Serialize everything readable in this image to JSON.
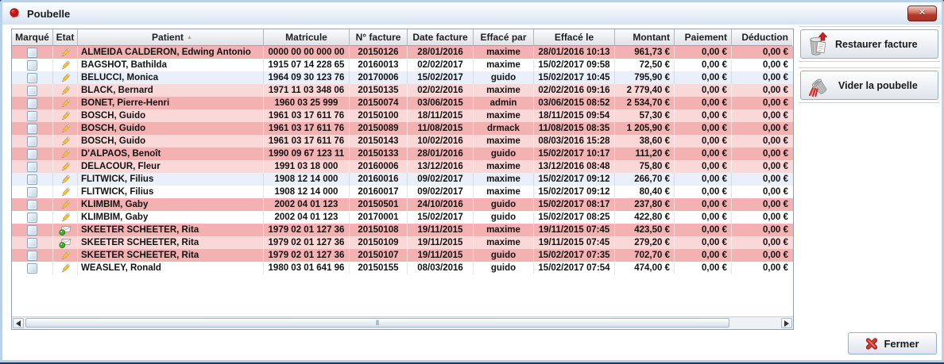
{
  "window": {
    "title": "Poubelle"
  },
  "icons": {
    "close_glyph": "✕"
  },
  "side_panel": {
    "restore_label": "Restaurer facture",
    "empty_label": "Vider la poubelle"
  },
  "footer": {
    "close_label": "Fermer"
  },
  "table": {
    "columns": [
      "Marqué",
      "Etat",
      "Patient",
      "Matricule",
      "N° facture",
      "Date facture",
      "Effacé par",
      "Effacé le",
      "Montant",
      "Paiement",
      "Déduction"
    ],
    "sorted_by": "Patient",
    "sort_direction": "asc",
    "rows": [
      {
        "marked": false,
        "etat": "pencil",
        "patient": "ALMEIDA CALDERON, Edwing Antonio",
        "matricule": "0000 00 00 000 00",
        "n_facture": "20150126",
        "date_facture": "28/01/2016",
        "efface_par": "maxime",
        "efface_le": "28/01/2016 10:13",
        "montant": "961,73 €",
        "paiement": "0,00 €",
        "deduction": "0,00 €",
        "tint": "dark-pink"
      },
      {
        "marked": false,
        "etat": "pencil",
        "patient": "BAGSHOT, Bathilda",
        "matricule": "1915 07 14 228 65",
        "n_facture": "20160013",
        "date_facture": "02/02/2017",
        "efface_par": "maxime",
        "efface_le": "15/02/2017 09:58",
        "montant": "72,50 €",
        "paiement": "0,00 €",
        "deduction": "0,00 €",
        "tint": "white"
      },
      {
        "marked": false,
        "etat": "pencil",
        "patient": "BELUCCI, Monica",
        "matricule": "1964 09 30 123 76",
        "n_facture": "20170006",
        "date_facture": "15/02/2017",
        "efface_par": "guido",
        "efface_le": "15/02/2017 10:45",
        "montant": "795,90 €",
        "paiement": "0,00 €",
        "deduction": "0,00 €",
        "tint": "blue"
      },
      {
        "marked": false,
        "etat": "pencil",
        "patient": "BLACK, Bernard",
        "matricule": "1971 11 03 348 06",
        "n_facture": "20150135",
        "date_facture": "02/02/2016",
        "efface_par": "maxime",
        "efface_le": "02/02/2016 09:16",
        "montant": "2 779,40 €",
        "paiement": "0,00 €",
        "deduction": "0,00 €",
        "tint": "light-pink"
      },
      {
        "marked": false,
        "etat": "pencil",
        "patient": "BONET, Pierre-Henri",
        "matricule": "1960 03 25 999",
        "n_facture": "20150074",
        "date_facture": "03/06/2015",
        "efface_par": "admin",
        "efface_le": "03/06/2015 08:52",
        "montant": "2 534,70 €",
        "paiement": "0,00 €",
        "deduction": "0,00 €",
        "tint": "dark-pink"
      },
      {
        "marked": false,
        "etat": "pencil",
        "patient": "BOSCH, Guido",
        "matricule": "1961 03 17 611 76",
        "n_facture": "20150100",
        "date_facture": "18/11/2015",
        "efface_par": "maxime",
        "efface_le": "18/11/2015 09:54",
        "montant": "57,30 €",
        "paiement": "0,00 €",
        "deduction": "0,00 €",
        "tint": "light-pink"
      },
      {
        "marked": false,
        "etat": "pencil",
        "patient": "BOSCH, Guido",
        "matricule": "1961 03 17 611 76",
        "n_facture": "20150089",
        "date_facture": "11/08/2015",
        "efface_par": "drmack",
        "efface_le": "11/08/2015 08:35",
        "montant": "1 205,90 €",
        "paiement": "0,00 €",
        "deduction": "0,00 €",
        "tint": "dark-pink"
      },
      {
        "marked": false,
        "etat": "pencil",
        "patient": "BOSCH, Guido",
        "matricule": "1961 03 17 611 76",
        "n_facture": "20150143",
        "date_facture": "10/02/2016",
        "efface_par": "maxime",
        "efface_le": "08/03/2016 15:28",
        "montant": "38,60 €",
        "paiement": "0,00 €",
        "deduction": "0,00 €",
        "tint": "light-pink"
      },
      {
        "marked": false,
        "etat": "pencil",
        "patient": "D'ALPAOS, Benoît",
        "matricule": "1990 09 67 123 11",
        "n_facture": "20150133",
        "date_facture": "28/01/2016",
        "efface_par": "guido",
        "efface_le": "15/02/2017 10:17",
        "montant": "111,20 €",
        "paiement": "0,00 €",
        "deduction": "0,00 €",
        "tint": "dark-pink"
      },
      {
        "marked": false,
        "etat": "pencil",
        "patient": "DELACOUR, Fleur",
        "matricule": "1991 03 18 000",
        "n_facture": "20160006",
        "date_facture": "13/12/2016",
        "efface_par": "maxime",
        "efface_le": "13/12/2016 08:48",
        "montant": "75,80 €",
        "paiement": "0,00 €",
        "deduction": "0,00 €",
        "tint": "light-pink"
      },
      {
        "marked": false,
        "etat": "pencil",
        "patient": "FLITWICK, Filius",
        "matricule": "1908 12 14 000",
        "n_facture": "20160016",
        "date_facture": "09/02/2017",
        "efface_par": "maxime",
        "efface_le": "15/02/2017 09:12",
        "montant": "266,70 €",
        "paiement": "0,00 €",
        "deduction": "0,00 €",
        "tint": "blue"
      },
      {
        "marked": false,
        "etat": "pencil",
        "patient": "FLITWICK, Filius",
        "matricule": "1908 12 14 000",
        "n_facture": "20160017",
        "date_facture": "09/02/2017",
        "efface_par": "maxime",
        "efface_le": "15/02/2017 09:12",
        "montant": "80,40 €",
        "paiement": "0,00 €",
        "deduction": "0,00 €",
        "tint": "white"
      },
      {
        "marked": false,
        "etat": "pencil",
        "patient": "KLIMBIM, Gaby",
        "matricule": "2002 04 01 123",
        "n_facture": "20150501",
        "date_facture": "24/10/2016",
        "efface_par": "guido",
        "efface_le": "15/02/2017 08:17",
        "montant": "237,80 €",
        "paiement": "0,00 €",
        "deduction": "0,00 €",
        "tint": "dark-pink"
      },
      {
        "marked": false,
        "etat": "pencil",
        "patient": "KLIMBIM, Gaby",
        "matricule": "2002 04 01 123",
        "n_facture": "20170001",
        "date_facture": "15/02/2017",
        "efface_par": "guido",
        "efface_le": "15/02/2017 08:25",
        "montant": "422,80 €",
        "paiement": "0,00 €",
        "deduction": "0,00 €",
        "tint": "white"
      },
      {
        "marked": false,
        "etat": "mail",
        "patient": "SKEETER SCHEETER, Rita",
        "matricule": "1979 02 01 127 36",
        "n_facture": "20150108",
        "date_facture": "19/11/2015",
        "efface_par": "maxime",
        "efface_le": "19/11/2015 07:45",
        "montant": "423,50 €",
        "paiement": "0,00 €",
        "deduction": "0,00 €",
        "tint": "dark-pink"
      },
      {
        "marked": false,
        "etat": "mail",
        "patient": "SKEETER SCHEETER, Rita",
        "matricule": "1979 02 01 127 36",
        "n_facture": "20150109",
        "date_facture": "19/11/2015",
        "efface_par": "maxime",
        "efface_le": "19/11/2015 07:45",
        "montant": "279,20 €",
        "paiement": "0,00 €",
        "deduction": "0,00 €",
        "tint": "light-pink"
      },
      {
        "marked": false,
        "etat": "pencil",
        "patient": "SKEETER SCHEETER, Rita",
        "matricule": "1979 02 01 127 36",
        "n_facture": "20150107",
        "date_facture": "19/11/2015",
        "efface_par": "guido",
        "efface_le": "15/02/2017 07:35",
        "montant": "702,70 €",
        "paiement": "0,00 €",
        "deduction": "0,00 €",
        "tint": "dark-pink"
      },
      {
        "marked": false,
        "etat": "pencil",
        "patient": "WEASLEY, Ronald",
        "matricule": "1980 03 01 641 96",
        "n_facture": "20150155",
        "date_facture": "08/03/2016",
        "efface_par": "guido",
        "efface_le": "15/02/2017 07:54",
        "montant": "474,00 €",
        "paiement": "0,00 €",
        "deduction": "0,00 €",
        "tint": "white"
      }
    ]
  }
}
